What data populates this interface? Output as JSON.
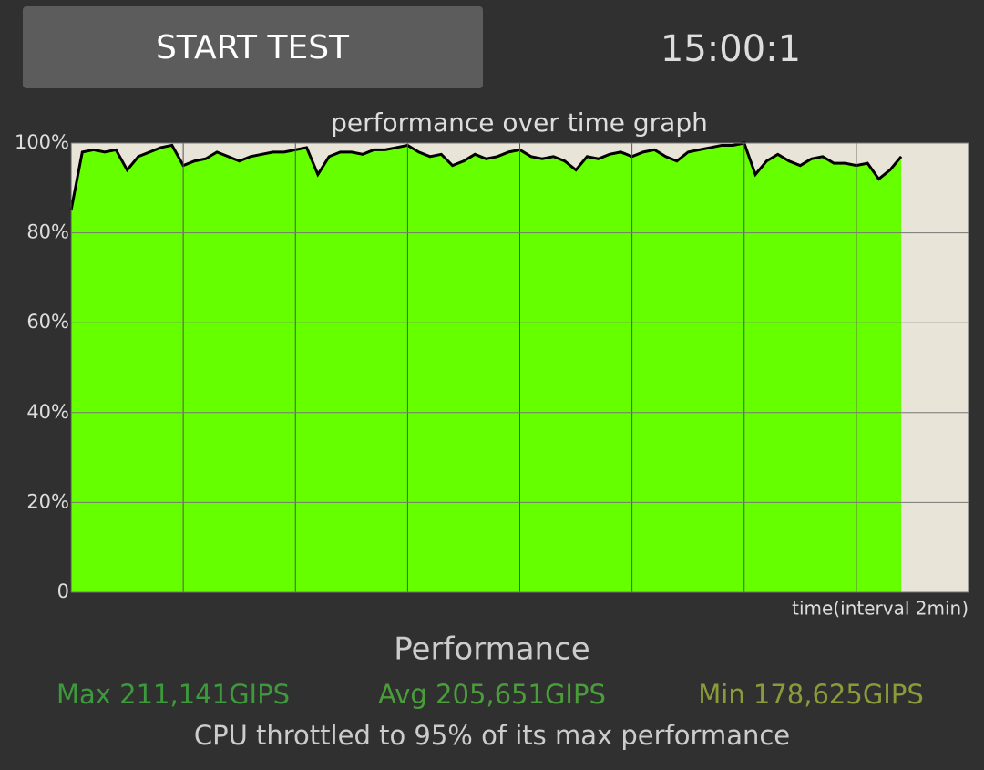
{
  "button": {
    "label": "START TEST"
  },
  "timer": "15:00:1",
  "chart_data": {
    "type": "line",
    "title": "performance over time graph",
    "x_label": "time(interval 2min)",
    "xlim": [
      0,
      16
    ],
    "xticks": [
      0,
      2,
      4,
      6,
      8,
      10,
      12,
      14,
      16
    ],
    "ylim": [
      0,
      100
    ],
    "yticks": [
      {
        "value": 0,
        "label": "0"
      },
      {
        "value": 20,
        "label": "20%"
      },
      {
        "value": 40,
        "label": "40%"
      },
      {
        "value": 60,
        "label": "60%"
      },
      {
        "value": 80,
        "label": "80%"
      },
      {
        "value": 100,
        "label": "100%"
      }
    ],
    "grid": true,
    "series": [
      {
        "color": "#000000",
        "fill": "#66ff00",
        "x": [
          0,
          0.2,
          0.4,
          0.6,
          0.8,
          1,
          1.2,
          1.4,
          1.6,
          1.8,
          2,
          2.2,
          2.4,
          2.6,
          2.8,
          3,
          3.2,
          3.4,
          3.6,
          3.8,
          4,
          4.2,
          4.4,
          4.6,
          4.8,
          5,
          5.2,
          5.4,
          5.6,
          5.8,
          6,
          6.2,
          6.4,
          6.6,
          6.8,
          7,
          7.2,
          7.4,
          7.6,
          7.8,
          8,
          8.2,
          8.4,
          8.6,
          8.8,
          9,
          9.2,
          9.4,
          9.6,
          9.8,
          10,
          10.2,
          10.4,
          10.6,
          10.8,
          11,
          11.2,
          11.4,
          11.6,
          11.8,
          12,
          12.2,
          12.4,
          12.6,
          12.8,
          13,
          13.2,
          13.4,
          13.6,
          13.8,
          14,
          14.2,
          14.4,
          14.6,
          14.8
        ],
        "values": [
          85,
          98,
          98.5,
          98,
          98.5,
          94,
          97,
          98,
          99,
          99.5,
          95,
          96,
          96.5,
          98,
          97,
          96,
          97,
          97.5,
          98,
          98,
          98.5,
          99,
          93,
          97,
          98,
          98,
          97.5,
          98.5,
          98.5,
          99,
          99.5,
          98,
          97,
          97.5,
          95,
          96,
          97.5,
          96.5,
          97,
          98,
          98.5,
          97,
          96.5,
          97,
          96,
          94,
          97,
          96.5,
          97.5,
          98,
          97,
          98,
          98.5,
          97,
          96,
          98,
          98.5,
          99,
          99.5,
          99.5,
          100,
          93,
          96,
          97.5,
          96,
          95,
          96.5,
          97,
          95.5,
          95.5,
          95,
          95.5,
          92,
          94,
          97
        ]
      }
    ]
  },
  "performance": {
    "heading": "Performance",
    "max": "Max 211,141GIPS",
    "avg": "Avg 205,651GIPS",
    "min": "Min 178,625GIPS",
    "summary": "CPU throttled to 95% of its max performance"
  }
}
